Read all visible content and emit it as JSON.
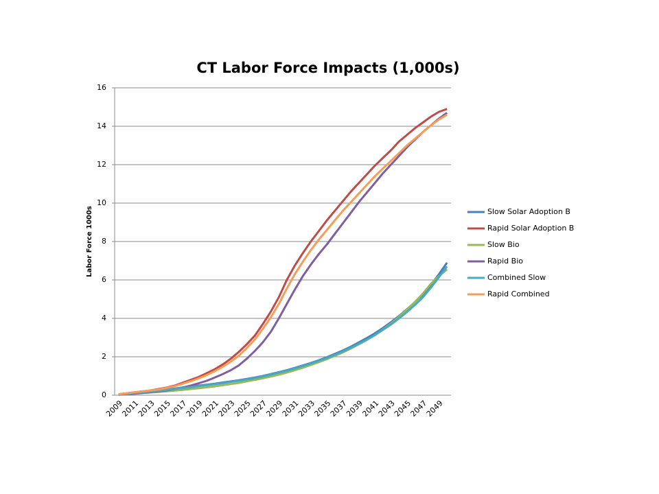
{
  "chart_data": {
    "type": "line",
    "title": "CT Labor Force Impacts (1,000s)",
    "y_label": "Labor Force 1000s",
    "categories": [
      "2009",
      null,
      "2011",
      null,
      "2013",
      null,
      "2015",
      null,
      "2017",
      null,
      "2019",
      null,
      "2021",
      null,
      "2023",
      null,
      "2025",
      null,
      "2027",
      null,
      "2029",
      null,
      "2031",
      null,
      "2033",
      null,
      "2035",
      null,
      "2037",
      null,
      "2039",
      null,
      "2041",
      null,
      "2043",
      null,
      "2045",
      null,
      "2047",
      null,
      "2049",
      null
    ],
    "ylim": [
      0,
      16
    ],
    "yticks": [
      0,
      2,
      4,
      6,
      8,
      10,
      12,
      14,
      16
    ],
    "grid": true,
    "legend": "right",
    "series": [
      {
        "name": "Slow Solar Adoption B",
        "color": "#4a7ebb",
        "values": [
          0.05,
          0.08,
          0.12,
          0.16,
          0.2,
          0.25,
          0.3,
          0.35,
          0.4,
          0.45,
          0.5,
          0.55,
          0.6,
          0.66,
          0.72,
          0.78,
          0.85,
          0.92,
          1.0,
          1.1,
          1.2,
          1.3,
          1.42,
          1.55,
          1.68,
          1.82,
          1.98,
          2.15,
          2.33,
          2.53,
          2.75,
          2.98,
          3.22,
          3.5,
          3.8,
          4.12,
          4.47,
          4.85,
          5.25,
          5.75,
          6.3,
          6.9
        ]
      },
      {
        "name": "Rapid Solar Adoption B",
        "color": "#be4b48",
        "values": [
          0.05,
          0.1,
          0.15,
          0.2,
          0.25,
          0.32,
          0.4,
          0.5,
          0.65,
          0.8,
          0.95,
          1.15,
          1.35,
          1.6,
          1.9,
          2.25,
          2.65,
          3.1,
          3.7,
          4.35,
          5.1,
          6.0,
          6.75,
          7.4,
          8.0,
          8.55,
          9.1,
          9.6,
          10.1,
          10.6,
          11.05,
          11.5,
          11.95,
          12.35,
          12.75,
          13.2,
          13.55,
          13.9,
          14.2,
          14.5,
          14.75,
          14.9
        ]
      },
      {
        "name": "Slow Bio",
        "color": "#98b954",
        "values": [
          0.03,
          0.05,
          0.08,
          0.11,
          0.14,
          0.17,
          0.2,
          0.24,
          0.28,
          0.32,
          0.36,
          0.41,
          0.46,
          0.52,
          0.58,
          0.64,
          0.72,
          0.8,
          0.88,
          0.97,
          1.07,
          1.18,
          1.3,
          1.43,
          1.57,
          1.72,
          1.88,
          2.05,
          2.23,
          2.43,
          2.65,
          2.88,
          3.13,
          3.42,
          3.73,
          4.08,
          4.45,
          4.85,
          5.3,
          5.8,
          6.2,
          6.55
        ]
      },
      {
        "name": "Rapid Bio",
        "color": "#7d5fa0",
        "values": [
          0.03,
          0.05,
          0.08,
          0.12,
          0.16,
          0.2,
          0.25,
          0.32,
          0.4,
          0.5,
          0.62,
          0.75,
          0.92,
          1.1,
          1.3,
          1.55,
          1.9,
          2.3,
          2.75,
          3.3,
          4.0,
          4.75,
          5.5,
          6.2,
          6.8,
          7.35,
          7.85,
          8.4,
          8.95,
          9.5,
          10.05,
          10.55,
          11.05,
          11.55,
          12.0,
          12.45,
          12.9,
          13.3,
          13.7,
          14.05,
          14.4,
          14.7
        ]
      },
      {
        "name": "Combined Slow",
        "color": "#46aac5",
        "values": [
          0.04,
          0.07,
          0.11,
          0.15,
          0.19,
          0.23,
          0.28,
          0.33,
          0.37,
          0.42,
          0.47,
          0.52,
          0.57,
          0.63,
          0.69,
          0.75,
          0.82,
          0.89,
          0.97,
          1.07,
          1.17,
          1.27,
          1.39,
          1.52,
          1.65,
          1.79,
          1.94,
          2.1,
          2.28,
          2.47,
          2.68,
          2.9,
          3.13,
          3.4,
          3.68,
          4.0,
          4.33,
          4.7,
          5.1,
          5.6,
          6.15,
          6.7
        ]
      },
      {
        "name": "Rapid Combined",
        "color": "#f59d56",
        "values": [
          0.05,
          0.1,
          0.15,
          0.2,
          0.25,
          0.3,
          0.38,
          0.47,
          0.6,
          0.73,
          0.88,
          1.05,
          1.25,
          1.48,
          1.75,
          2.05,
          2.45,
          2.9,
          3.45,
          4.05,
          4.75,
          5.55,
          6.3,
          6.95,
          7.55,
          8.1,
          8.6,
          9.1,
          9.6,
          10.05,
          10.5,
          10.95,
          11.4,
          11.8,
          12.2,
          12.6,
          13.0,
          13.35,
          13.7,
          14.05,
          14.35,
          14.6
        ]
      }
    ]
  }
}
